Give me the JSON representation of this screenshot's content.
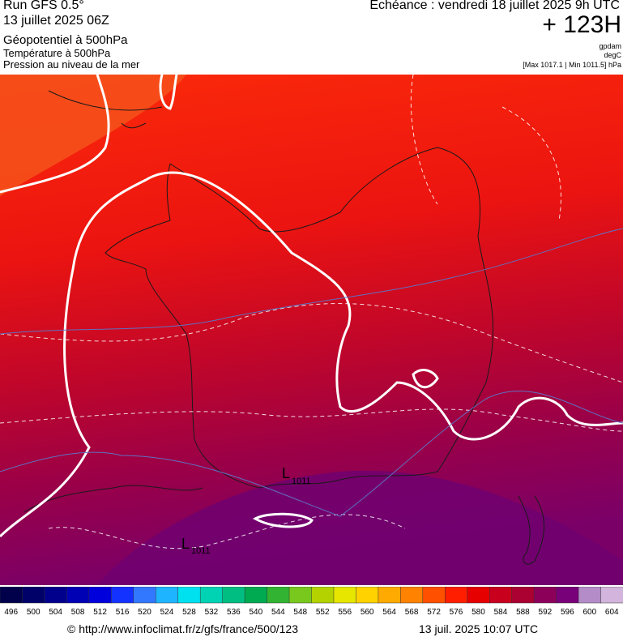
{
  "header": {
    "left": [
      "Run GFS 0.5°",
      "13 juillet 2025 06Z",
      "Géopotentiel à 500hPa",
      "Température à 500hPa",
      "Pression au niveau de la mer"
    ],
    "right": {
      "valid": "Echéance : vendredi 18 juillet 2025 9h UTC",
      "lead": "+ 123H",
      "units": [
        "gpdam",
        "degC"
      ],
      "range": "[Max 1017.1 | Min 1011.5] hPa"
    }
  },
  "map": {
    "lows": [
      {
        "label": "L",
        "value": "1011"
      },
      {
        "label": "L",
        "value": "1011"
      }
    ]
  },
  "scale": {
    "ticks": [
      496,
      500,
      504,
      508,
      512,
      516,
      520,
      524,
      528,
      532,
      536,
      540,
      544,
      548,
      552,
      556,
      560,
      564,
      568,
      572,
      576,
      580,
      584,
      588,
      592,
      596,
      600,
      604
    ],
    "colors": [
      "#00004b",
      "#000069",
      "#00008c",
      "#0000b4",
      "#0000dc",
      "#1432ff",
      "#3278ff",
      "#1eb4ff",
      "#00e1f0",
      "#00d2b4",
      "#00be82",
      "#00aa50",
      "#32b432",
      "#78c81e",
      "#b4d200",
      "#e6e600",
      "#ffd200",
      "#ffaa00",
      "#ff8200",
      "#ff5000",
      "#ff1e00",
      "#e60000",
      "#c8001e",
      "#aa0032",
      "#8c005a",
      "#780078",
      "#b48cc8",
      "#d2b4dc"
    ]
  },
  "footer": {
    "url": "© http://www.infoclimat.fr/z/gfs/france/500/123",
    "time": "13 juil. 2025 10:07 UTC"
  }
}
